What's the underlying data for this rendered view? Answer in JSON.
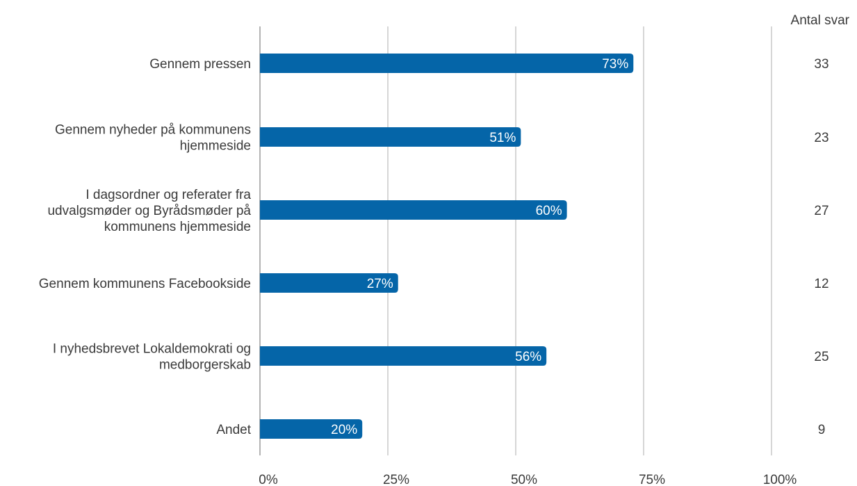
{
  "chart_data": {
    "type": "bar",
    "orientation": "horizontal",
    "categories": [
      [
        "Gennem pressen"
      ],
      [
        "Gennem nyheder på kommunens",
        "hjemmeside"
      ],
      [
        "I dagsordner og referater fra",
        "udvalgsmøder og Byrådsmøder på",
        "kommunens hjemmeside"
      ],
      [
        "Gennem kommunens Facebookside"
      ],
      [
        "I nyhedsbrevet Lokaldemokrati og",
        "medborgerskab"
      ],
      [
        "Andet"
      ]
    ],
    "values": [
      73,
      51,
      60,
      27,
      56,
      20
    ],
    "value_labels": [
      "73%",
      "51%",
      "60%",
      "27%",
      "56%",
      "20%"
    ],
    "counts": [
      33,
      23,
      27,
      12,
      25,
      9
    ],
    "count_header": "Antal svar",
    "xlim": [
      0,
      100
    ],
    "x_ticks": [
      0,
      25,
      50,
      75,
      100
    ],
    "x_tick_labels": [
      "0%",
      "25%",
      "50%",
      "75%",
      "100%"
    ],
    "grid": true,
    "bar_color": "#0565a8",
    "grid_color": "#c8c8c8",
    "axis_color": "#9a9a9a"
  }
}
